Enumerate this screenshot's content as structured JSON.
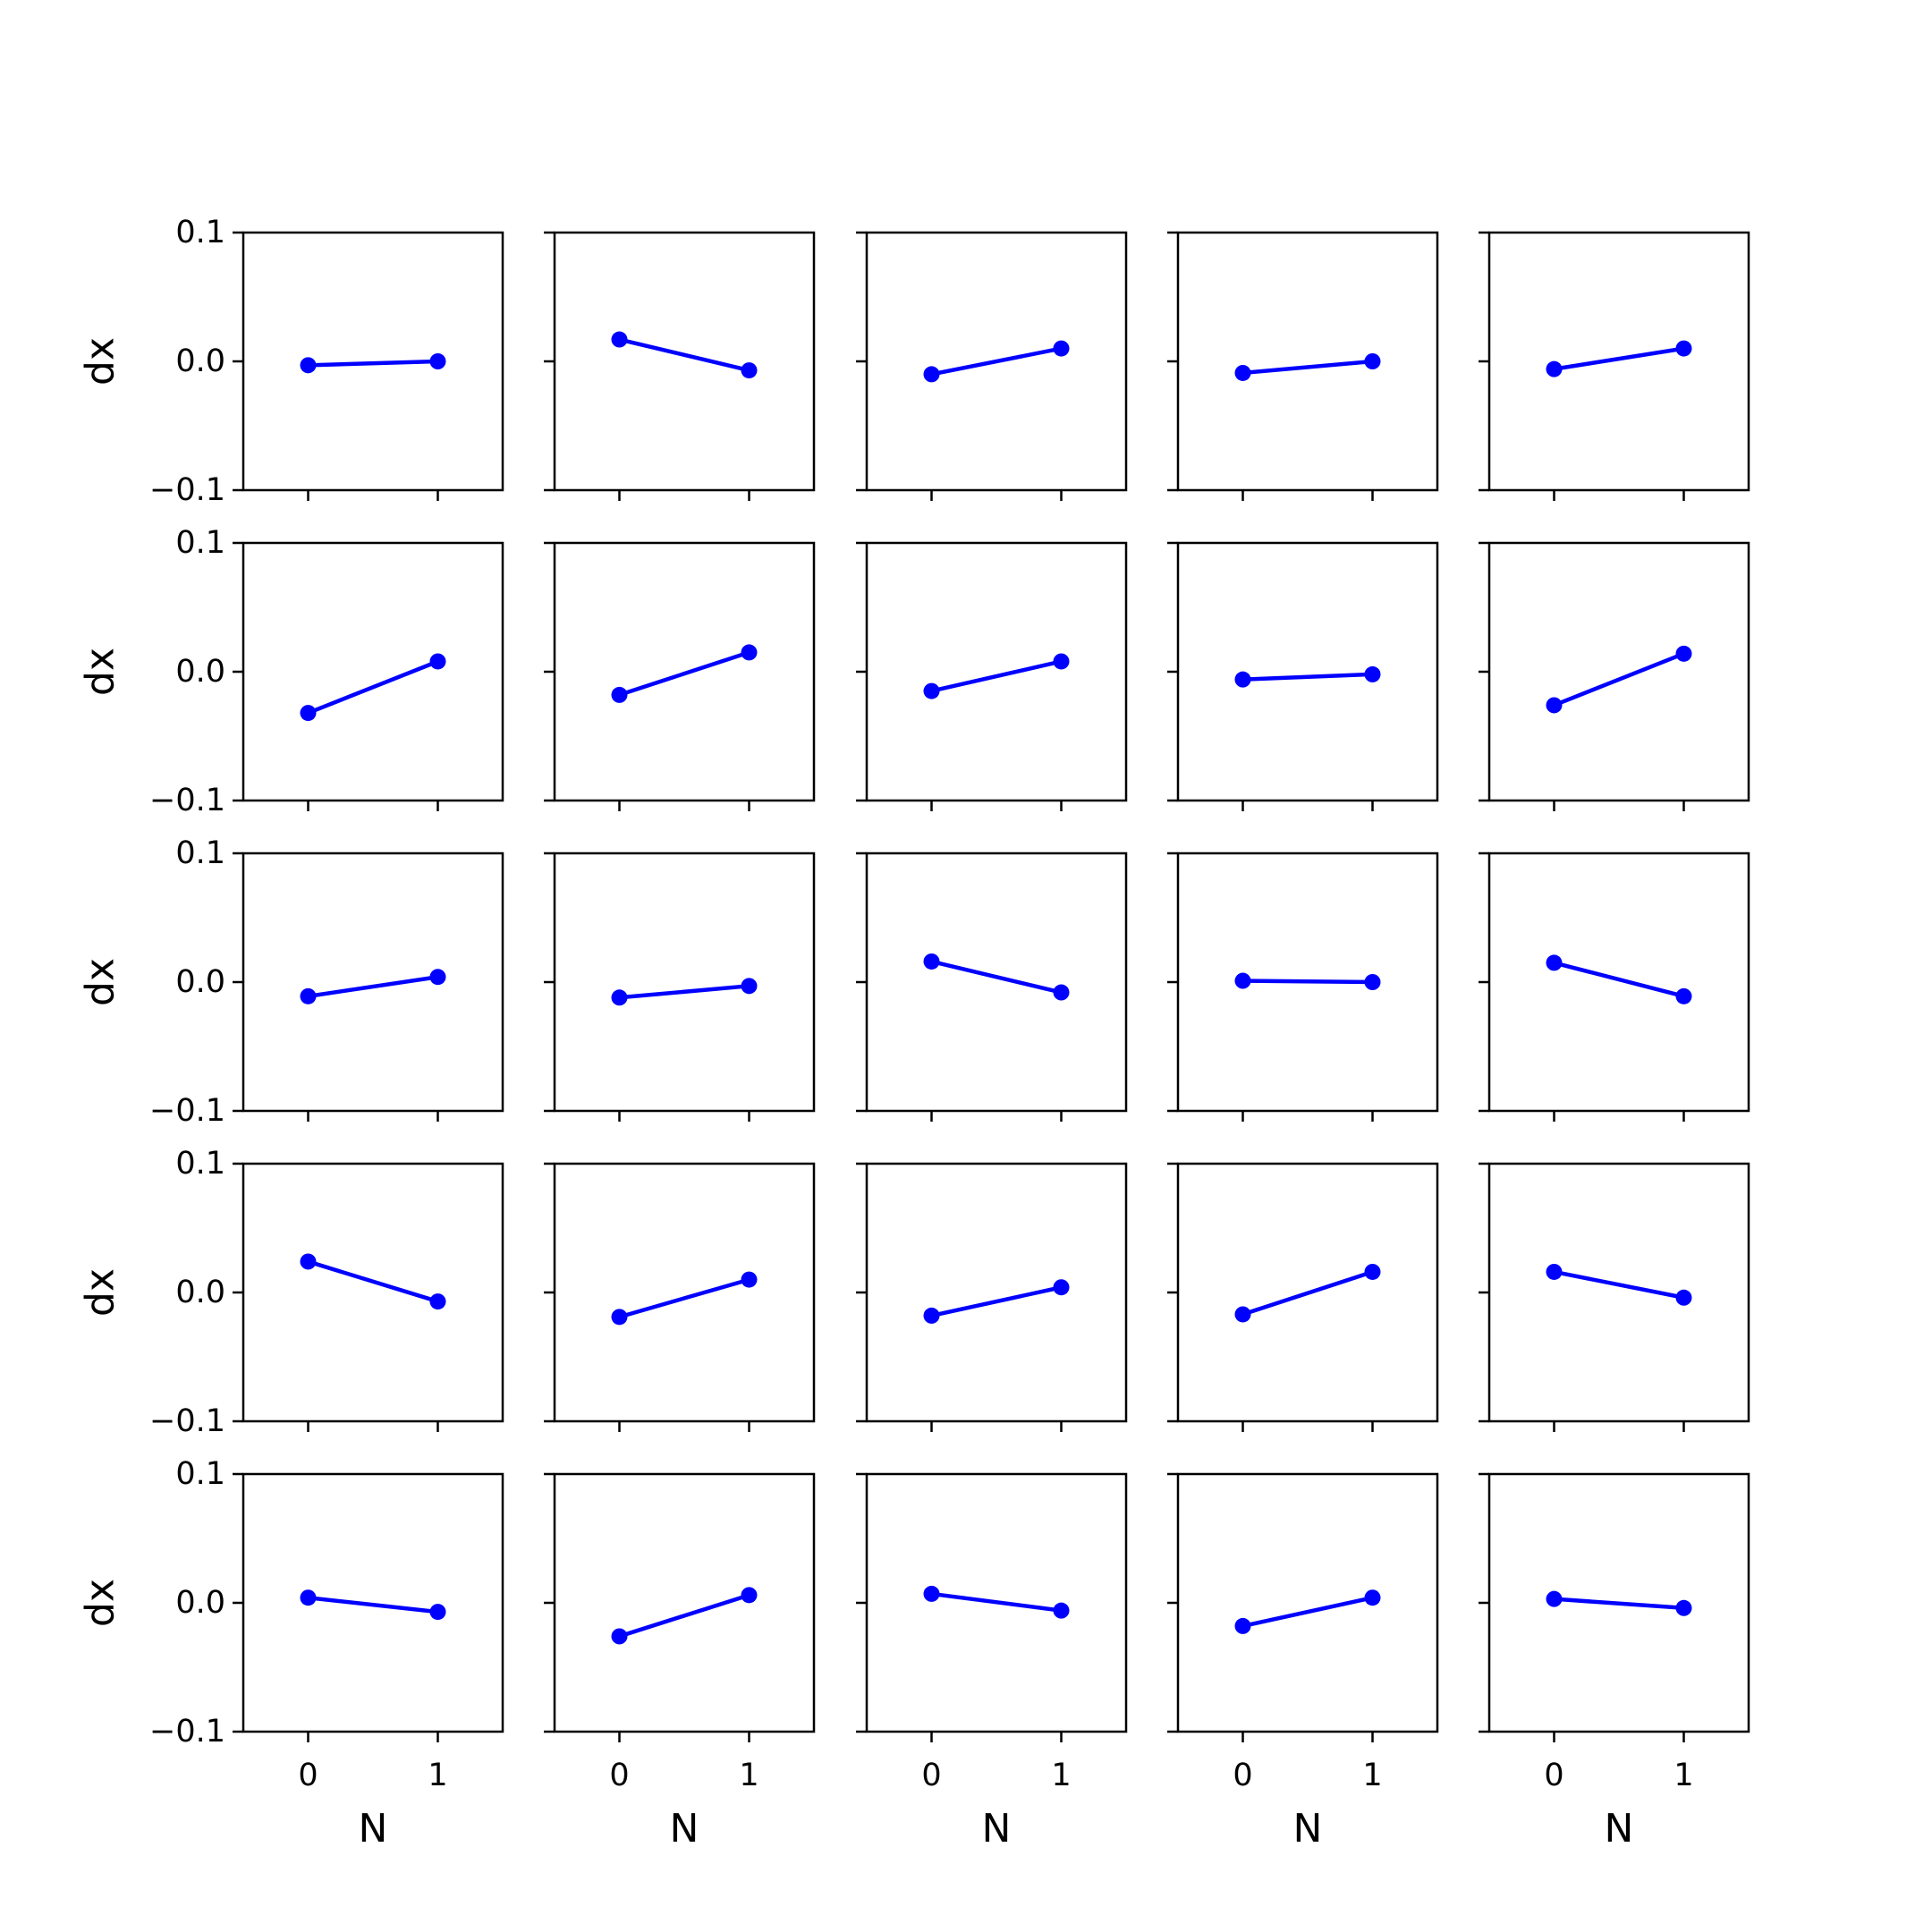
{
  "figure": {
    "rows": 5,
    "cols": 5,
    "line_color": "#0000ff",
    "axis_color": "#000000",
    "background": "#ffffff"
  },
  "chart_data": {
    "type": "line",
    "layout": "5x5 grid of small multiples, shared axes",
    "xlabel": "N",
    "ylabel": "dx",
    "xticks": [
      0,
      1
    ],
    "xtick_labels": [
      "0",
      "1"
    ],
    "xlim": [
      -0.5,
      1.5
    ],
    "yticks": [
      -0.1,
      0.0,
      0.1
    ],
    "ytick_labels": [
      "−0.1",
      "0.0",
      "0.1"
    ],
    "ylim": [
      -0.1,
      0.1
    ],
    "grid": false,
    "markers": "circle",
    "x": [
      0,
      1
    ],
    "panels": [
      {
        "row": 1,
        "col": 1,
        "values": [
          -0.003,
          0.0
        ]
      },
      {
        "row": 1,
        "col": 2,
        "values": [
          0.017,
          -0.007
        ]
      },
      {
        "row": 1,
        "col": 3,
        "values": [
          -0.01,
          0.01
        ]
      },
      {
        "row": 1,
        "col": 4,
        "values": [
          -0.009,
          0.0
        ]
      },
      {
        "row": 1,
        "col": 5,
        "values": [
          -0.006,
          0.01
        ]
      },
      {
        "row": 2,
        "col": 1,
        "values": [
          -0.032,
          0.008
        ]
      },
      {
        "row": 2,
        "col": 2,
        "values": [
          -0.018,
          0.015
        ]
      },
      {
        "row": 2,
        "col": 3,
        "values": [
          -0.015,
          0.008
        ]
      },
      {
        "row": 2,
        "col": 4,
        "values": [
          -0.006,
          -0.002
        ]
      },
      {
        "row": 2,
        "col": 5,
        "values": [
          -0.026,
          0.014
        ]
      },
      {
        "row": 3,
        "col": 1,
        "values": [
          -0.011,
          0.004
        ]
      },
      {
        "row": 3,
        "col": 2,
        "values": [
          -0.012,
          -0.003
        ]
      },
      {
        "row": 3,
        "col": 3,
        "values": [
          0.016,
          -0.008
        ]
      },
      {
        "row": 3,
        "col": 4,
        "values": [
          0.001,
          0.0
        ]
      },
      {
        "row": 3,
        "col": 5,
        "values": [
          0.015,
          -0.011
        ]
      },
      {
        "row": 4,
        "col": 1,
        "values": [
          0.024,
          -0.007
        ]
      },
      {
        "row": 4,
        "col": 2,
        "values": [
          -0.019,
          0.01
        ]
      },
      {
        "row": 4,
        "col": 3,
        "values": [
          -0.018,
          0.004
        ]
      },
      {
        "row": 4,
        "col": 4,
        "values": [
          -0.017,
          0.016
        ]
      },
      {
        "row": 4,
        "col": 5,
        "values": [
          0.016,
          -0.004
        ]
      },
      {
        "row": 5,
        "col": 1,
        "values": [
          0.004,
          -0.007
        ]
      },
      {
        "row": 5,
        "col": 2,
        "values": [
          -0.026,
          0.006
        ]
      },
      {
        "row": 5,
        "col": 3,
        "values": [
          0.007,
          -0.006
        ]
      },
      {
        "row": 5,
        "col": 4,
        "values": [
          -0.018,
          0.004
        ]
      },
      {
        "row": 5,
        "col": 5,
        "values": [
          0.003,
          -0.004
        ]
      }
    ]
  }
}
